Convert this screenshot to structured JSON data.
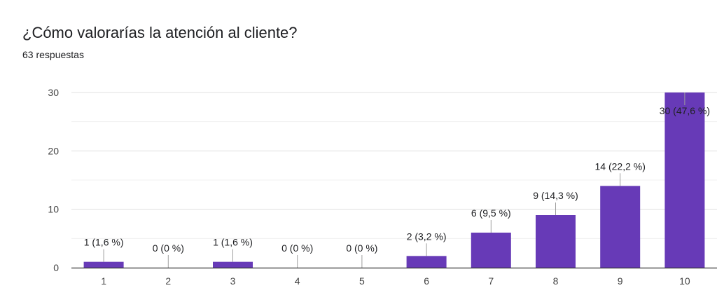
{
  "chart_data": {
    "type": "bar",
    "title": "¿Cómo valorarías la atención al cliente?",
    "subtitle": "63 respuestas",
    "categories": [
      "1",
      "2",
      "3",
      "4",
      "5",
      "6",
      "7",
      "8",
      "9",
      "10"
    ],
    "values": [
      1,
      0,
      1,
      0,
      0,
      2,
      6,
      9,
      14,
      30
    ],
    "data_labels": [
      "1 (1,6 %)",
      "0 (0 %)",
      "1 (1,6 %)",
      "0 (0 %)",
      "0 (0 %)",
      "2 (3,2 %)",
      "6 (9,5 %)",
      "9 (14,3 %)",
      "14 (22,2 %)",
      "30 (47,6 %)"
    ],
    "yticks": [
      0,
      10,
      20,
      30
    ],
    "ylim": [
      0,
      30
    ],
    "grid": true,
    "bar_color": "#673ab7",
    "gridline_color": "#e8e8e8",
    "axis_color": "#333333"
  }
}
